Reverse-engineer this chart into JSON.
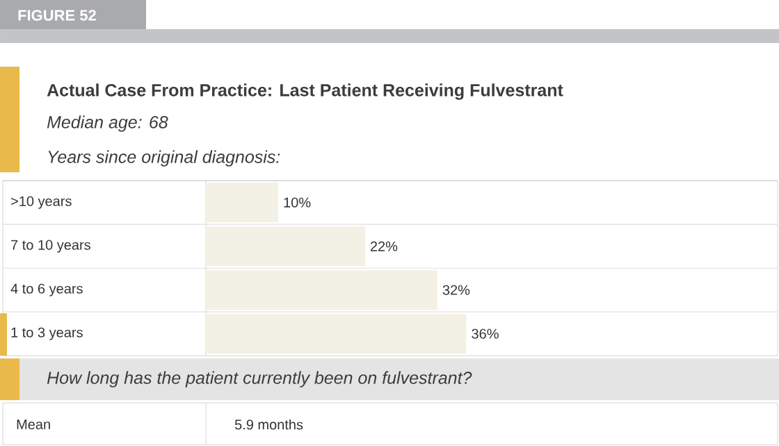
{
  "chart_data": {
    "type": "bar",
    "orientation": "horizontal",
    "title": "Actual Case From Practice: Last Patient Receiving Fulvestrant",
    "subtitle": "Median age: 68",
    "ylabel": "Years since original diagnosis:",
    "categories": [
      ">10 years",
      "7 to 10 years",
      "4 to 6 years",
      "1 to 3 years"
    ],
    "values": [
      10,
      22,
      32,
      36
    ],
    "value_labels": [
      "10%",
      "22%",
      "32%",
      "36%"
    ],
    "color": "#f3f1e5",
    "annotations": [
      "FIGURE 52",
      "How long has the patient currently been on fulvestrant?",
      "Mean",
      "5.9 months"
    ]
  }
}
